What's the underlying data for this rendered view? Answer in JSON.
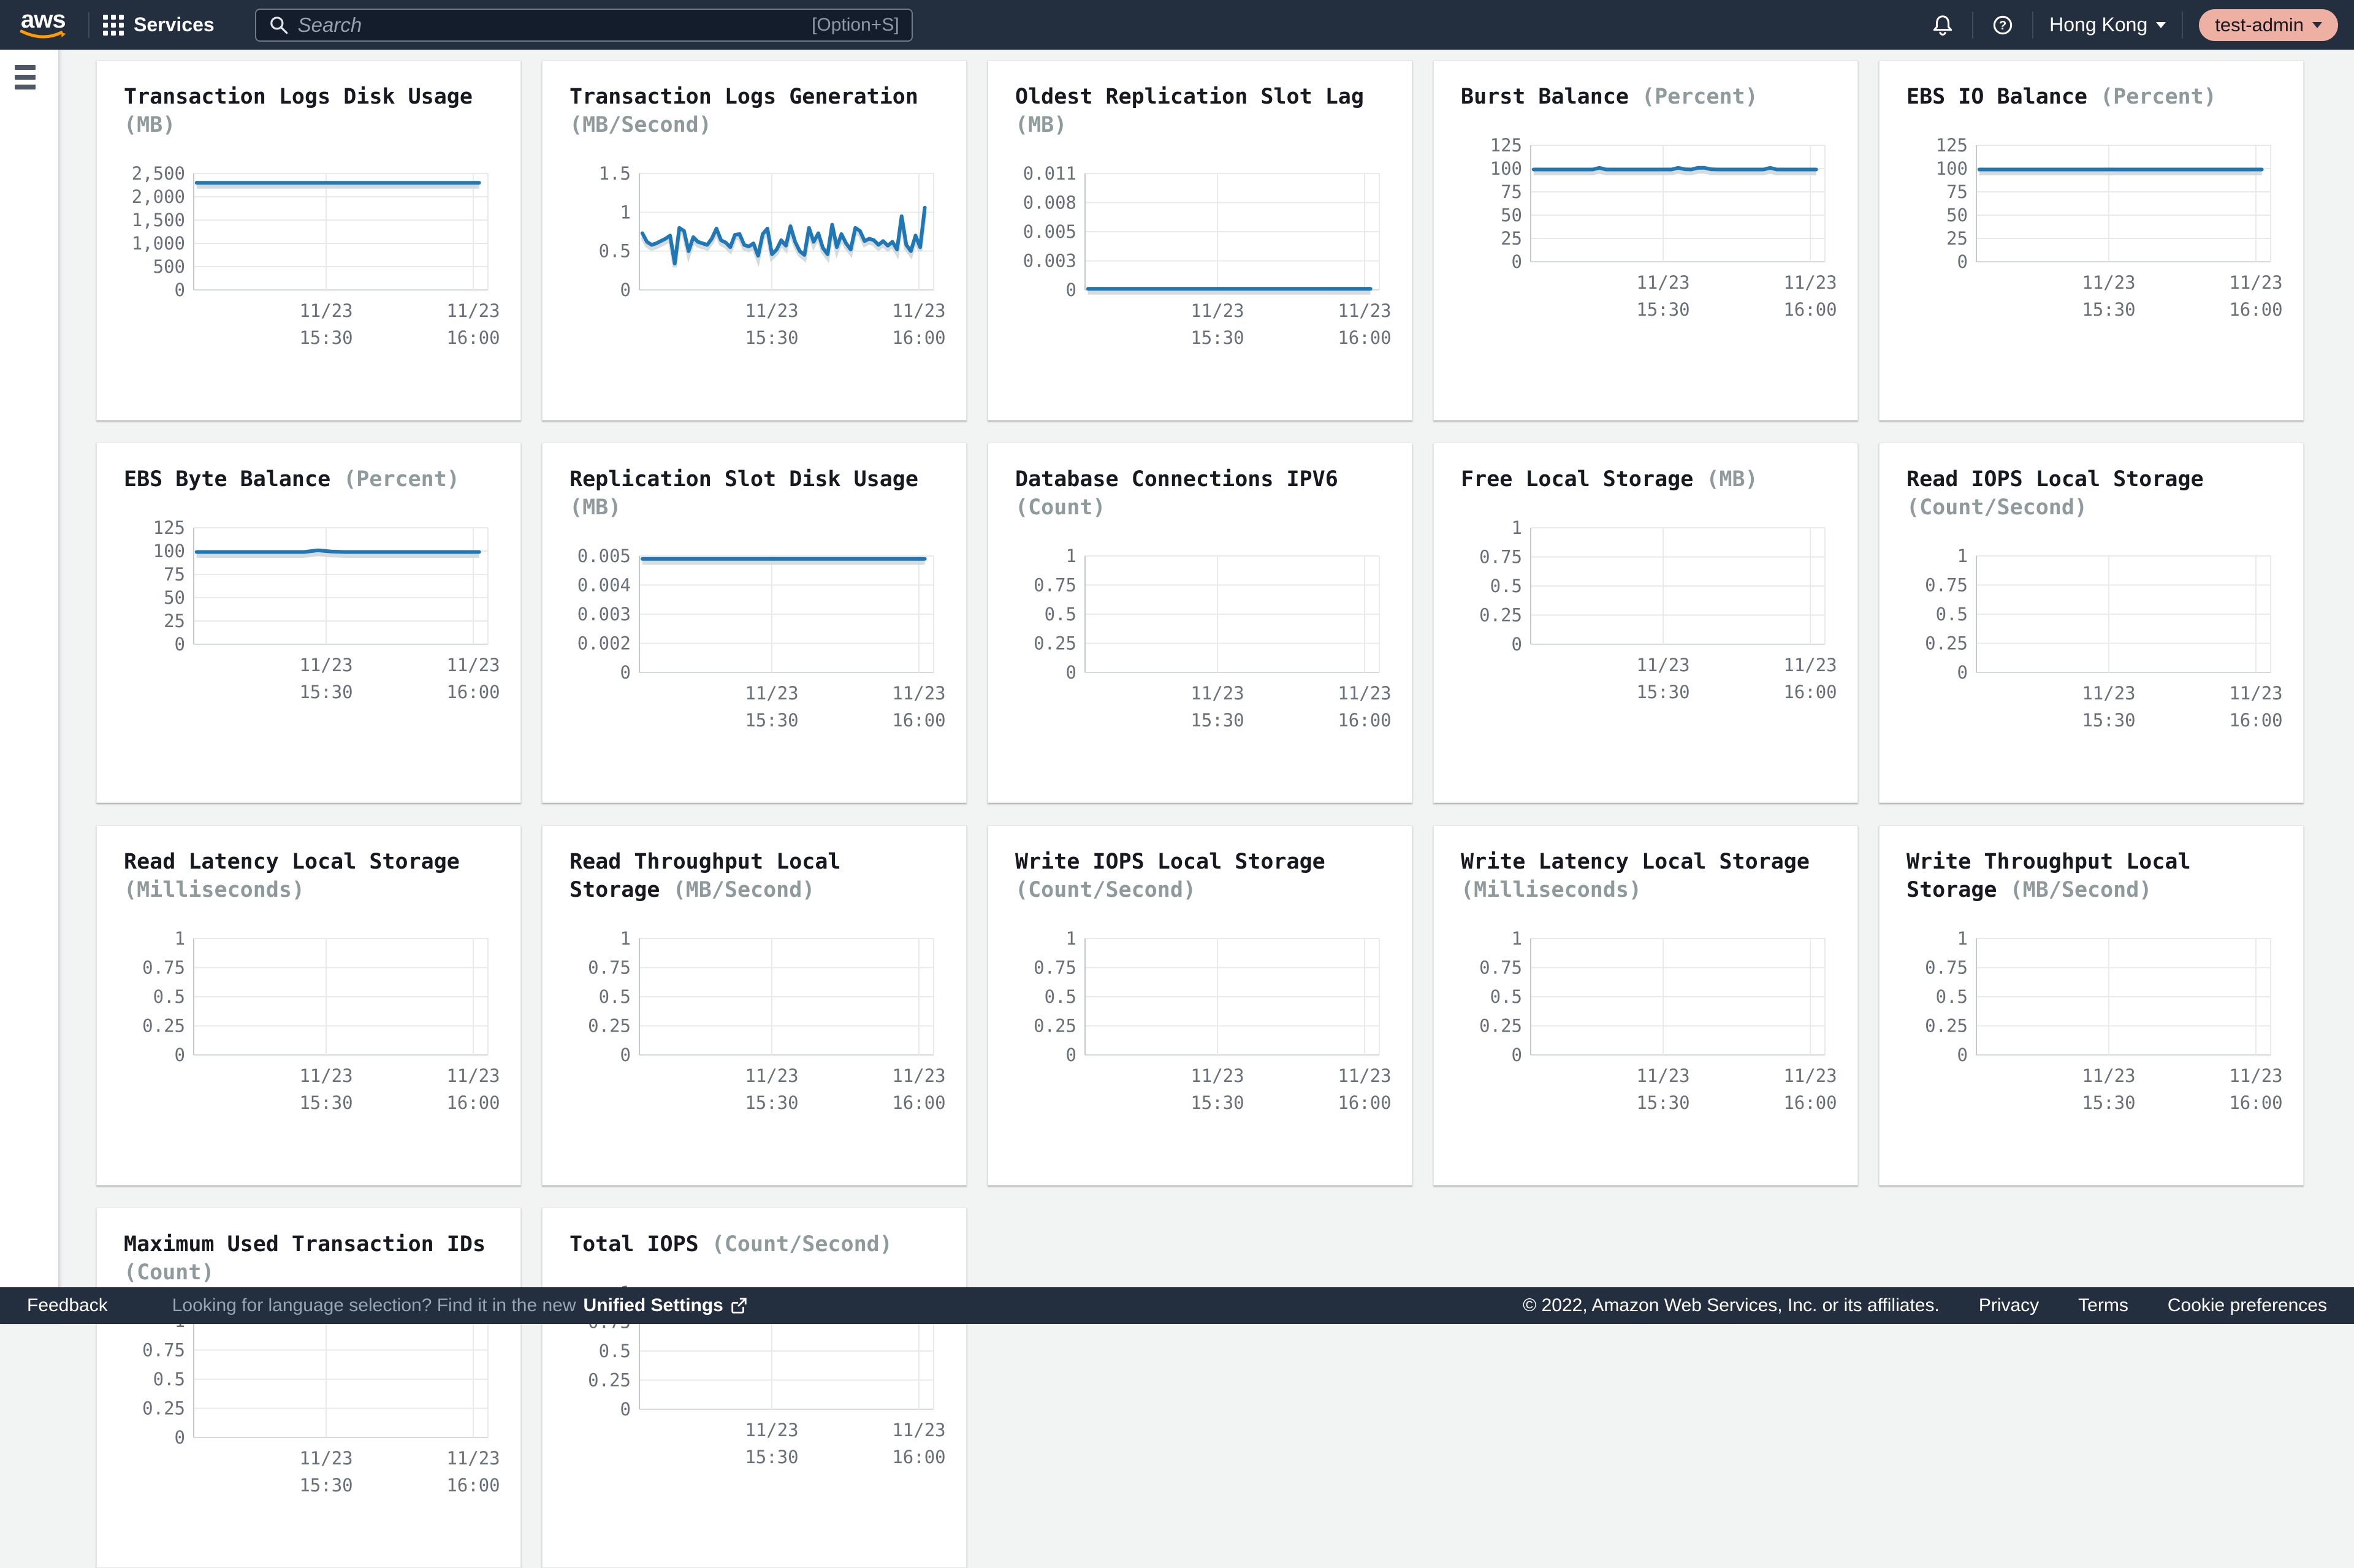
{
  "topbar": {
    "logo": "aws",
    "services_label": "Services",
    "search_placeholder": "Search",
    "search_shortcut": "[Option+S]",
    "region": "Hong Kong",
    "account": "test-admin"
  },
  "footer": {
    "feedback": "Feedback",
    "language_hint": "Looking for language selection? Find it in the new",
    "language_link": "Unified Settings",
    "copyright": "© 2022, Amazon Web Services, Inc. or its affiliates.",
    "links": [
      "Privacy",
      "Terms",
      "Cookie preferences"
    ]
  },
  "colors": {
    "line": "#1f78b5",
    "line_shadow": "#d2d7da",
    "topbar_bg": "#232f3e",
    "page_bg": "#f2f3f3",
    "card_bg": "#ffffff",
    "account_pill": "#eeb0a3",
    "logo_smile": "#ff9900",
    "tick_text": "#697078",
    "unit_text": "#8e9a9c",
    "title_text": "#16191f",
    "grid_line": "#e9ebeb"
  },
  "chart_defaults": {
    "xticks": [
      [
        "11/23",
        "15:30"
      ],
      [
        "11/23",
        "16:00"
      ]
    ]
  },
  "chart_data": [
    {
      "type": "line",
      "title": "Transaction Logs Disk Usage",
      "unit": "(MB)",
      "yticks": [
        "2,500",
        "2,000",
        "1,500",
        "1,000",
        "500",
        "0"
      ],
      "ylim": [
        0,
        2500
      ],
      "values": [
        2300,
        2300
      ]
    },
    {
      "type": "line",
      "title": "Transaction Logs Generation",
      "unit": "(MB/Second)",
      "yticks": [
        "1.5",
        "1",
        "0.5",
        "0"
      ],
      "ylim": [
        0,
        1.5
      ],
      "values": [
        0.73,
        0.62,
        0.58,
        0.6,
        0.63,
        0.66,
        0.7,
        0.34,
        0.8,
        0.76,
        0.5,
        0.68,
        0.62,
        0.6,
        0.58,
        0.66,
        0.79,
        0.64,
        0.61,
        0.55,
        0.71,
        0.72,
        0.58,
        0.56,
        0.6,
        0.44,
        0.72,
        0.79,
        0.46,
        0.52,
        0.64,
        0.57,
        0.82,
        0.62,
        0.5,
        0.45,
        0.8,
        0.62,
        0.73,
        0.54,
        0.46,
        0.84,
        0.55,
        0.72,
        0.6,
        0.52,
        0.8,
        0.76,
        0.63,
        0.66,
        0.64,
        0.58,
        0.63,
        0.57,
        0.62,
        0.52,
        0.95,
        0.58,
        0.5,
        0.7,
        0.55,
        1.06
      ]
    },
    {
      "type": "line",
      "title": "Oldest Replication Slot Lag",
      "unit": "(MB)",
      "yticks": [
        "0.011",
        "0.008",
        "0.005",
        "0.003",
        "0"
      ],
      "ylim": [
        0,
        0.011
      ],
      "values": [
        0.00012,
        0.00012
      ]
    },
    {
      "type": "line",
      "title": "Burst Balance",
      "unit": "(Percent)",
      "yticks": [
        "125",
        "100",
        "75",
        "50",
        "25",
        "0"
      ],
      "ylim": [
        0,
        125
      ],
      "values": [
        99,
        99,
        99,
        99,
        99,
        99,
        99,
        99,
        99,
        99,
        100.8,
        99,
        99,
        99,
        99,
        99,
        99,
        99,
        99,
        99,
        99,
        99,
        100.8,
        99.3,
        99,
        100.8,
        100.8,
        99.2,
        99,
        99,
        99,
        99,
        99,
        99,
        99,
        99,
        100.8,
        99,
        99,
        99,
        99,
        99,
        99,
        99
      ]
    },
    {
      "type": "line",
      "title": "EBS IO Balance",
      "unit": "(Percent)",
      "yticks": [
        "125",
        "100",
        "75",
        "50",
        "25",
        "0"
      ],
      "ylim": [
        0,
        125
      ],
      "values": [
        99,
        99
      ]
    },
    {
      "type": "line",
      "title": "EBS Byte Balance",
      "unit": "(Percent)",
      "yticks": [
        "125",
        "100",
        "75",
        "50",
        "25",
        "0"
      ],
      "ylim": [
        0,
        125
      ],
      "values": [
        99,
        99,
        99,
        99,
        99,
        99,
        99,
        99,
        99,
        100.8,
        99.5,
        99,
        99,
        99,
        99,
        99,
        99,
        99,
        99,
        99,
        99,
        99
      ]
    },
    {
      "type": "line",
      "title": "Replication Slot Disk Usage",
      "unit": "(MB)",
      "yticks": [
        "0.005",
        "0.004",
        "0.003",
        "0.002",
        "0"
      ],
      "ylim": [
        0,
        0.005
      ],
      "values": [
        0.0049,
        0.0049
      ]
    },
    {
      "type": "line",
      "title": "Database Connections IPV6",
      "unit": "(Count)",
      "yticks": [
        "1",
        "0.75",
        "0.5",
        "0.25",
        "0"
      ],
      "ylim": [
        0,
        1
      ],
      "values": []
    },
    {
      "type": "line",
      "title": "Free Local Storage",
      "unit": "(MB)",
      "yticks": [
        "1",
        "0.75",
        "0.5",
        "0.25",
        "0"
      ],
      "ylim": [
        0,
        1
      ],
      "values": []
    },
    {
      "type": "line",
      "title": "Read IOPS Local Storage",
      "unit": "(Count/Second)",
      "yticks": [
        "1",
        "0.75",
        "0.5",
        "0.25",
        "0"
      ],
      "ylim": [
        0,
        1
      ],
      "values": []
    },
    {
      "type": "line",
      "title": "Read Latency Local Storage",
      "unit": "(Milliseconds)",
      "yticks": [
        "1",
        "0.75",
        "0.5",
        "0.25",
        "0"
      ],
      "ylim": [
        0,
        1
      ],
      "values": []
    },
    {
      "type": "line",
      "title": "Read Throughput Local Storage",
      "unit": "(MB/Second)",
      "yticks": [
        "1",
        "0.75",
        "0.5",
        "0.25",
        "0"
      ],
      "ylim": [
        0,
        1
      ],
      "values": []
    },
    {
      "type": "line",
      "title": "Write IOPS Local Storage",
      "unit": "(Count/Second)",
      "yticks": [
        "1",
        "0.75",
        "0.5",
        "0.25",
        "0"
      ],
      "ylim": [
        0,
        1
      ],
      "values": []
    },
    {
      "type": "line",
      "title": "Write Latency Local Storage",
      "unit": "(Milliseconds)",
      "yticks": [
        "1",
        "0.75",
        "0.5",
        "0.25",
        "0"
      ],
      "ylim": [
        0,
        1
      ],
      "values": []
    },
    {
      "type": "line",
      "title": "Write Throughput Local Storage",
      "unit": "(MB/Second)",
      "yticks": [
        "1",
        "0.75",
        "0.5",
        "0.25",
        "0"
      ],
      "ylim": [
        0,
        1
      ],
      "values": []
    },
    {
      "type": "line",
      "title": "Maximum Used Transaction IDs",
      "unit": "(Count)",
      "yticks": [
        "1",
        "0.75",
        "0.5",
        "0.25",
        "0"
      ],
      "ylim": [
        0,
        1
      ],
      "values": []
    },
    {
      "type": "line",
      "title": "Total IOPS",
      "unit": "(Count/Second)",
      "yticks": [
        "1",
        "0.75",
        "0.5",
        "0.25",
        "0"
      ],
      "ylim": [
        0,
        1
      ],
      "values": []
    }
  ]
}
